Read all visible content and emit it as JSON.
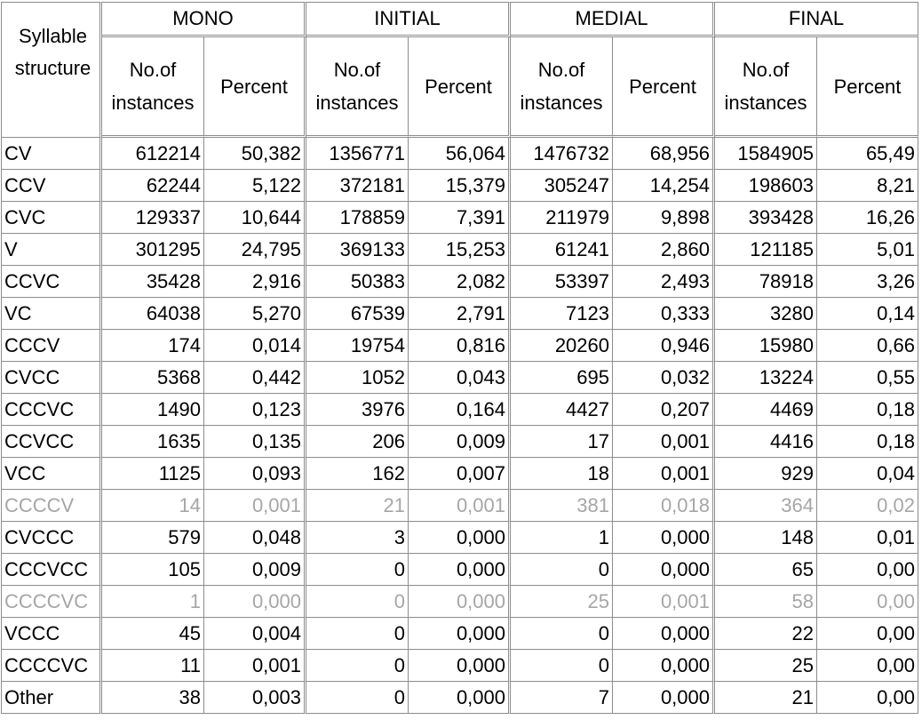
{
  "table": {
    "corner_label": "Syllable\nstructure",
    "groups": [
      "MONO",
      "INITIAL",
      "MEDIAL",
      "FINAL"
    ],
    "sub_headers": {
      "count": "No.of instances",
      "percent": "Percent"
    },
    "rows": [
      {
        "label": "CV",
        "greyed": false,
        "values": [
          "612214",
          "50,382",
          "1356771",
          "56,064",
          "1476732",
          "68,956",
          "1584905",
          "65,49"
        ]
      },
      {
        "label": "CCV",
        "greyed": false,
        "values": [
          "62244",
          "5,122",
          "372181",
          "15,379",
          "305247",
          "14,254",
          "198603",
          "8,21"
        ]
      },
      {
        "label": "CVC",
        "greyed": false,
        "values": [
          "129337",
          "10,644",
          "178859",
          "7,391",
          "211979",
          "9,898",
          "393428",
          "16,26"
        ]
      },
      {
        "label": "V",
        "greyed": false,
        "values": [
          "301295",
          "24,795",
          "369133",
          "15,253",
          "61241",
          "2,860",
          "121185",
          "5,01"
        ]
      },
      {
        "label": "CCVC",
        "greyed": false,
        "values": [
          "35428",
          "2,916",
          "50383",
          "2,082",
          "53397",
          "2,493",
          "78918",
          "3,26"
        ]
      },
      {
        "label": "VC",
        "greyed": false,
        "values": [
          "64038",
          "5,270",
          "67539",
          "2,791",
          "7123",
          "0,333",
          "3280",
          "0,14"
        ]
      },
      {
        "label": "CCCV",
        "greyed": false,
        "values": [
          "174",
          "0,014",
          "19754",
          "0,816",
          "20260",
          "0,946",
          "15980",
          "0,66"
        ]
      },
      {
        "label": "CVCC",
        "greyed": false,
        "values": [
          "5368",
          "0,442",
          "1052",
          "0,043",
          "695",
          "0,032",
          "13224",
          "0,55"
        ]
      },
      {
        "label": "CCCVC",
        "greyed": false,
        "values": [
          "1490",
          "0,123",
          "3976",
          "0,164",
          "4427",
          "0,207",
          "4469",
          "0,18"
        ]
      },
      {
        "label": "CCVCC",
        "greyed": false,
        "values": [
          "1635",
          "0,135",
          "206",
          "0,009",
          "17",
          "0,001",
          "4416",
          "0,18"
        ]
      },
      {
        "label": "VCC",
        "greyed": false,
        "values": [
          "1125",
          "0,093",
          "162",
          "0,007",
          "18",
          "0,001",
          "929",
          "0,04"
        ]
      },
      {
        "label": "CCCCV",
        "greyed": true,
        "values": [
          "14",
          "0,001",
          "21",
          "0,001",
          "381",
          "0,018",
          "364",
          "0,02"
        ]
      },
      {
        "label": "CVCCC",
        "greyed": false,
        "values": [
          "579",
          "0,048",
          "3",
          "0,000",
          "1",
          "0,000",
          "148",
          "0,01"
        ]
      },
      {
        "label": "CCCVCC",
        "greyed": false,
        "values": [
          "105",
          "0,009",
          "0",
          "0,000",
          "0",
          "0,000",
          "65",
          "0,00"
        ]
      },
      {
        "label": "CCCCVC",
        "greyed": true,
        "values": [
          "1",
          "0,000",
          "0",
          "0,000",
          "25",
          "0,001",
          "58",
          "0,00"
        ]
      },
      {
        "label": "VCCC",
        "greyed": false,
        "values": [
          "45",
          "0,004",
          "0",
          "0,000",
          "0",
          "0,000",
          "22",
          "0,00"
        ]
      },
      {
        "label": "CCCCVC",
        "greyed": false,
        "values": [
          "11",
          "0,001",
          "0",
          "0,000",
          "0",
          "0,000",
          "25",
          "0,00"
        ]
      },
      {
        "label": "Other",
        "greyed": false,
        "values": [
          "38",
          "0,003",
          "0",
          "0,000",
          "7",
          "0,000",
          "21",
          "0,00"
        ]
      }
    ],
    "colors": {
      "border": "#8c8c8c",
      "greyed_text": "#a6a6a6",
      "text": "#000000"
    }
  }
}
